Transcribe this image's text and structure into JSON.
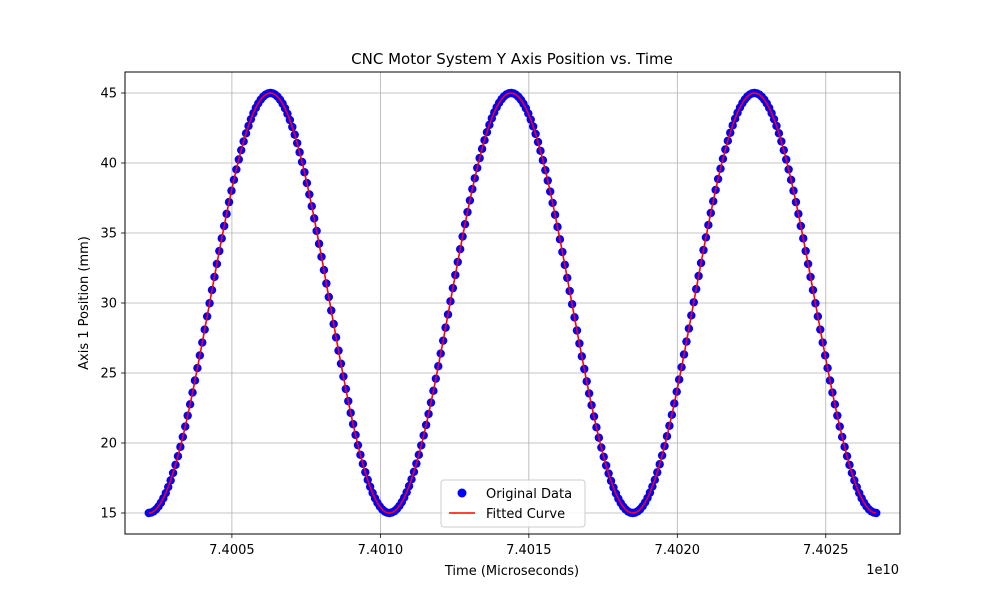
{
  "chart_data": {
    "type": "scatter",
    "title": "CNC Motor System Y Axis Position vs. Time",
    "xlabel": "Time (Microseconds)",
    "ylabel": "Axis 1 Position (mm)",
    "x_offset_label": "1e10",
    "xlim": [
      7.40014,
      7.40275
    ],
    "ylim": [
      13.5,
      46.5
    ],
    "x_ticks": [
      7.4005,
      7.401,
      7.4015,
      7.402,
      7.4025
    ],
    "x_tick_labels": [
      "7.4005",
      "7.4010",
      "7.4015",
      "7.4020",
      "7.4025"
    ],
    "y_ticks": [
      15,
      20,
      25,
      30,
      35,
      40,
      45
    ],
    "y_tick_labels": [
      "15",
      "20",
      "25",
      "30",
      "35",
      "40",
      "45"
    ],
    "grid": true,
    "legend_position": "bottom-center",
    "series": [
      {
        "name": "Original Data",
        "kind": "scatter",
        "color": "#0000ff",
        "x_range": [
          7.40022,
          7.40267
        ],
        "y_min": 15.0,
        "y_max": 45.0,
        "peaks_x": [
          7.40063,
          7.40144,
          7.40226
        ],
        "troughs_x": [
          7.40022,
          7.40103,
          7.40185,
          7.40267
        ],
        "point_count": 300
      },
      {
        "name": "Fitted Curve",
        "kind": "line",
        "color": "#ff0000",
        "x_range": [
          7.40022,
          7.40267
        ],
        "y_min": 15.0,
        "y_max": 45.0,
        "peaks_x": [
          7.40063,
          7.40144,
          7.40226
        ],
        "troughs_x": [
          7.40022,
          7.40103,
          7.40185,
          7.40267
        ]
      }
    ]
  }
}
